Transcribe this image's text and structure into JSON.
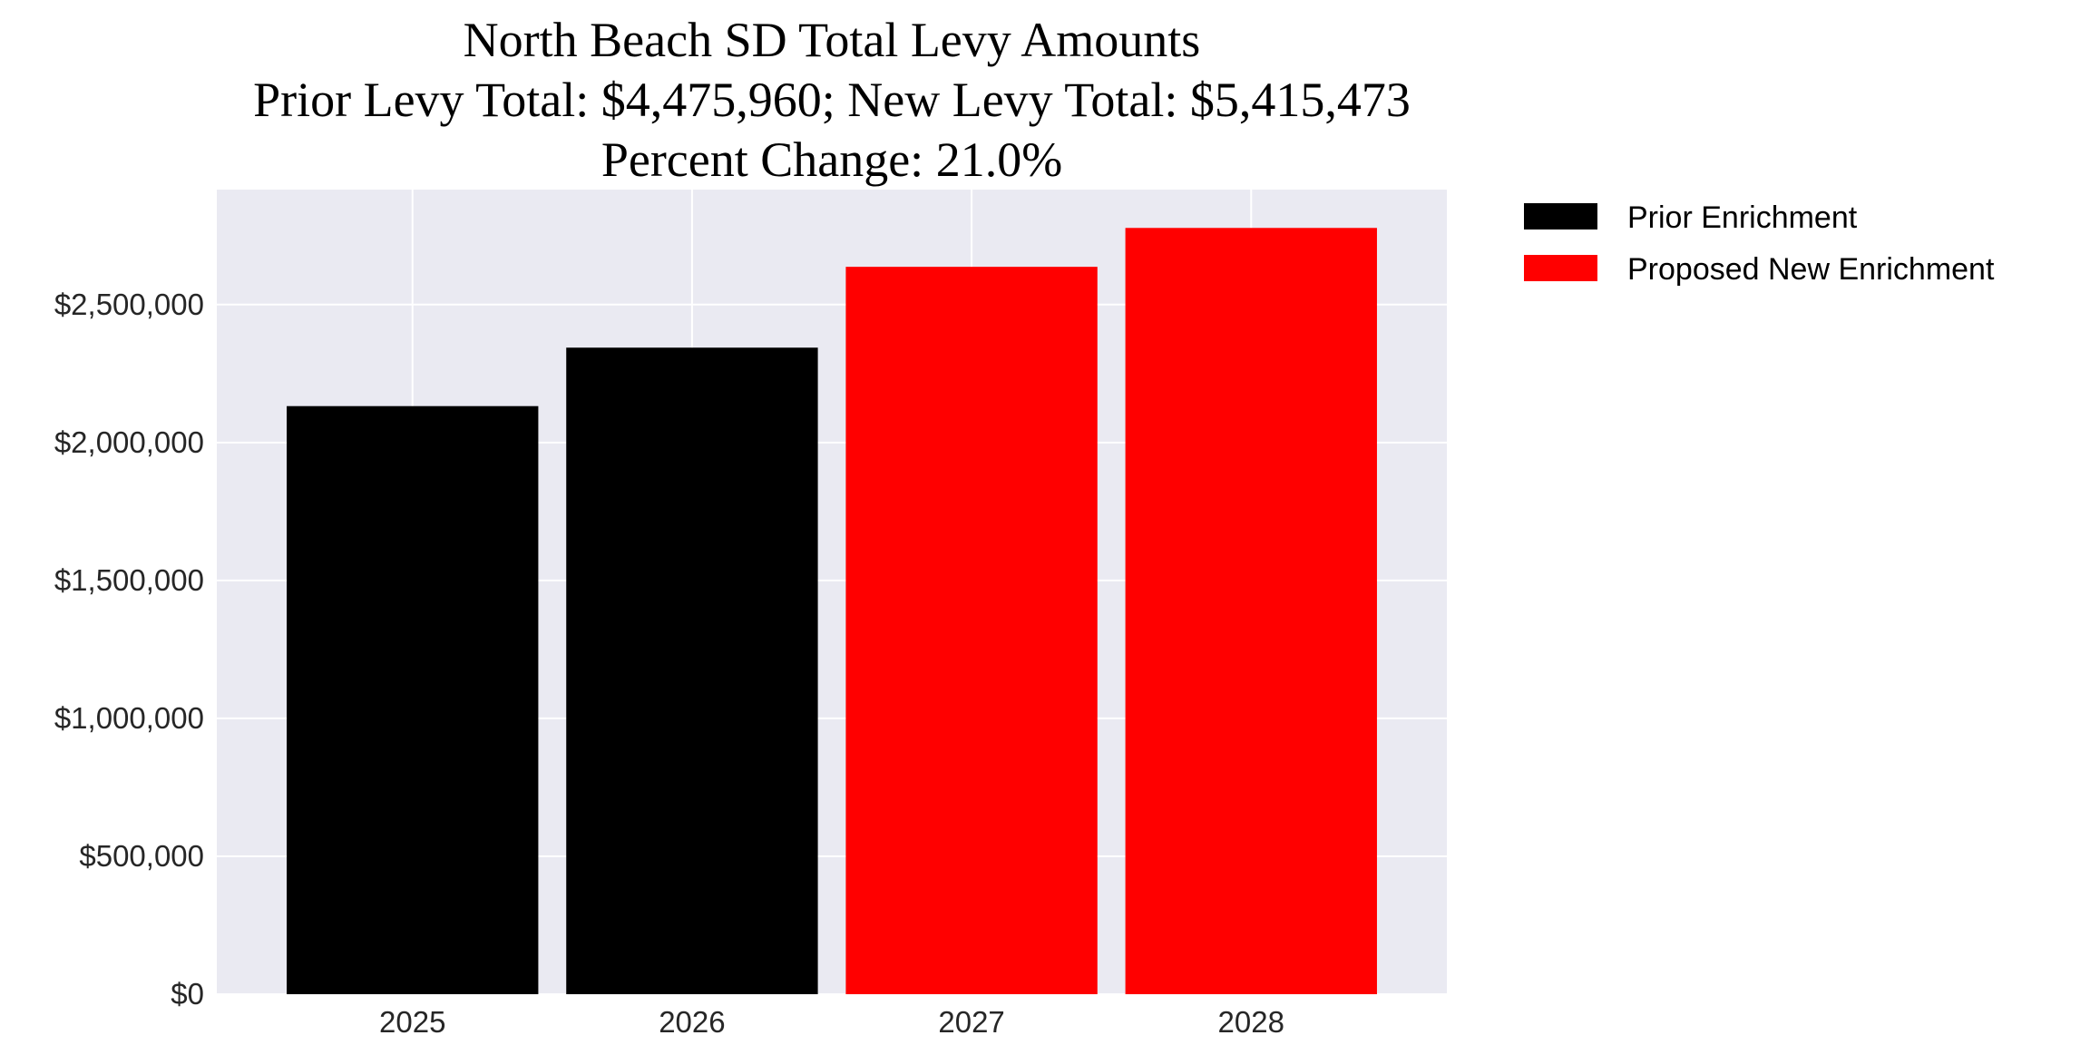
{
  "chart_data": {
    "type": "bar",
    "title_lines": [
      "North Beach SD Total Levy Amounts",
      "Prior Levy Total:  $4,475,960; New Levy Total: $5,415,473",
      "Percent Change: 21.0%"
    ],
    "categories": [
      "2025",
      "2026",
      "2027",
      "2028"
    ],
    "values": [
      2132000,
      2344000,
      2637000,
      2778000
    ],
    "bar_series": [
      "Prior Enrichment",
      "Prior Enrichment",
      "Proposed New Enrichment",
      "Proposed New Enrichment"
    ],
    "legend": [
      {
        "label": "Prior Enrichment",
        "color": "#000000"
      },
      {
        "label": "Proposed New Enrichment",
        "color": "#ff0000"
      }
    ],
    "legend_position": "outside-top-right",
    "yticks": [
      0,
      500000,
      1000000,
      1500000,
      2000000,
      2500000
    ],
    "ytick_labels": [
      "$0",
      "$500,000",
      "$1,000,000",
      "$1,500,000",
      "$2,000,000",
      "$2,500,000"
    ],
    "ylim": [
      0,
      2917000
    ],
    "xlim": [
      -0.7,
      3.7
    ],
    "bar_width": 0.9,
    "xlabel": "",
    "ylabel": "",
    "grid": true,
    "background": "#eaeaf2"
  }
}
